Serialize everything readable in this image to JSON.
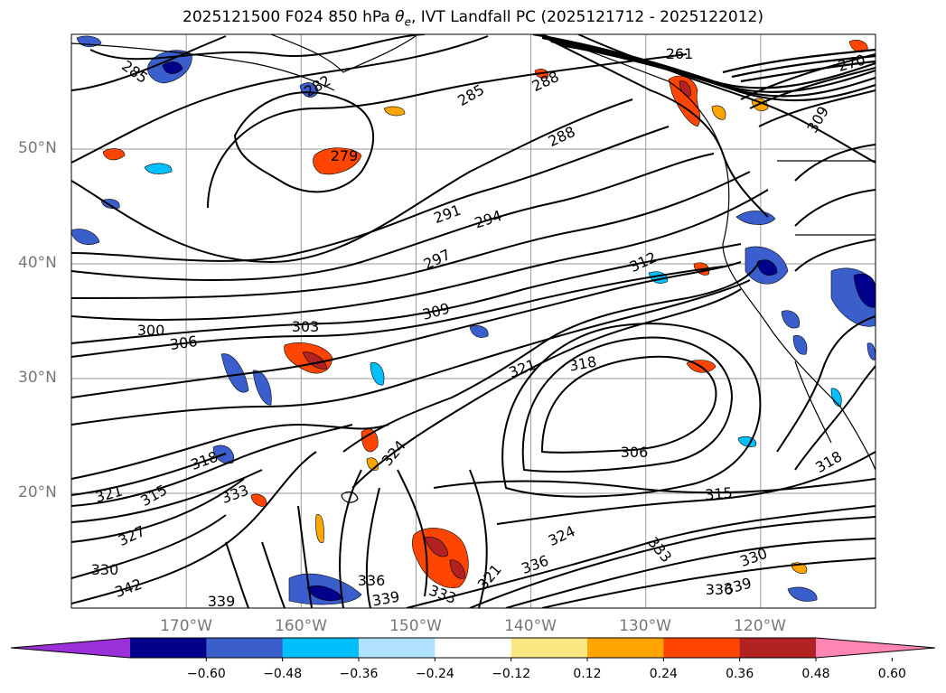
{
  "title": {
    "prefix": "2025121500 F024 850 hPa ",
    "theta": "θ",
    "theta_sub": "e",
    "suffix": ", IVT Landfall PC (2025121712 - 2025122012)"
  },
  "map": {
    "projection": "PlateCarree",
    "lon_range": [
      -180,
      -110
    ],
    "lat_range": [
      10,
      60
    ],
    "gridlines": true,
    "lat_labels": [
      "50°N",
      "40°N",
      "30°N",
      "20°N"
    ],
    "lon_labels": [
      "170°W",
      "160°W",
      "150°W",
      "140°W",
      "130°W",
      "120°W"
    ]
  },
  "theta_e_contour_labels": [
    "285",
    "282",
    "279",
    "285",
    "288",
    "288",
    "261",
    "270",
    "309",
    "291",
    "294",
    "297",
    "312",
    "300",
    "303",
    "306",
    "309",
    "321",
    "318",
    "306",
    "315",
    "318",
    "324",
    "318",
    "321",
    "315",
    "333",
    "327",
    "330",
    "342",
    "339",
    "336",
    "339",
    "333",
    "321",
    "336",
    "324",
    "333",
    "330",
    "339",
    "336"
  ],
  "colorbar": {
    "ticks": [
      "−0.60",
      "−0.48",
      "−0.36",
      "−0.24",
      "−0.12",
      "0.12",
      "0.24",
      "0.36",
      "0.48",
      "0.60"
    ],
    "colors": [
      "#9b30d9",
      "#00008b",
      "#3a5fcd",
      "#00bfff",
      "#b0e2ff",
      "#ffffff",
      "#fce883",
      "#ffa500",
      "#ff4500",
      "#b22222",
      "#ff85b3"
    ]
  },
  "colors": {
    "gridline": "#9a9a9a",
    "coastline": "#000000",
    "tick_label": "#777777"
  }
}
